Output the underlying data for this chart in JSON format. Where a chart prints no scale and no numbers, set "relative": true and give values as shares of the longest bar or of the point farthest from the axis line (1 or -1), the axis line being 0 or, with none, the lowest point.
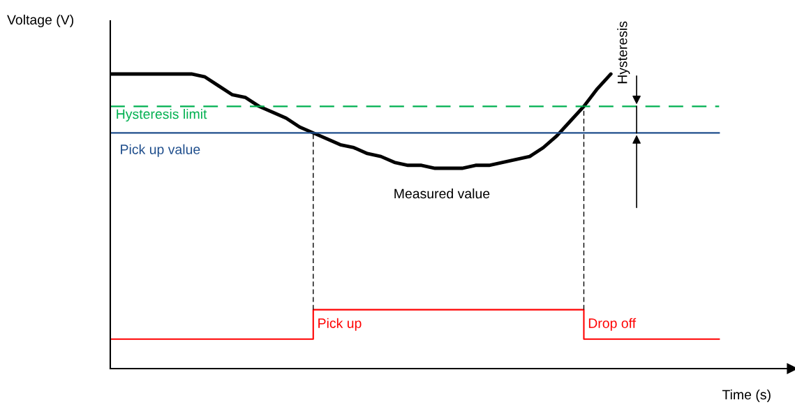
{
  "chart_data": {
    "type": "line",
    "relative": true,
    "xlabel": "Time (s)",
    "ylabel": "Voltage (V)",
    "categories": [
      null,
      null,
      null,
      null,
      null,
      null,
      null,
      null,
      null,
      null,
      null,
      null,
      null,
      null,
      null,
      null,
      null,
      null,
      null,
      null,
      null,
      null,
      null,
      null,
      null,
      null,
      null,
      null,
      null,
      null,
      null,
      null,
      null,
      null,
      null,
      null,
      null,
      null,
      null,
      null,
      null,
      null,
      null,
      null,
      null,
      null,
      null,
      null,
      null,
      null,
      null
    ],
    "series": [
      {
        "name": "Measured value",
        "color": "#000000",
        "values": [
          1.0,
          1.0,
          1.0,
          1.0,
          1.0,
          1.0,
          1.0,
          0.99,
          0.96,
          0.93,
          0.92,
          0.89,
          0.87,
          0.85,
          0.82,
          0.8,
          0.78,
          0.76,
          0.75,
          0.73,
          0.72,
          0.7,
          0.69,
          0.69,
          0.68,
          0.68,
          0.68,
          0.69,
          0.69,
          0.7,
          0.71,
          0.72,
          0.75,
          0.79,
          0.84,
          0.89,
          0.95,
          1.0,
          null,
          null,
          null,
          null,
          null,
          null,
          null,
          null,
          null,
          null,
          null,
          null,
          null
        ]
      },
      {
        "type": "step",
        "color": "#ff0000",
        "values": [
          0.1,
          0.1,
          0.1,
          0.1,
          0.1,
          0.1,
          0.1,
          0.1,
          0.1,
          0.1,
          0.1,
          0.1,
          0.1,
          0.1,
          0.1,
          0.2,
          0.2,
          0.2,
          0.2,
          0.2,
          0.2,
          0.2,
          0.2,
          0.2,
          0.2,
          0.2,
          0.2,
          0.2,
          0.2,
          0.2,
          0.2,
          0.2,
          0.2,
          0.2,
          0.2,
          0.1,
          0.1,
          0.1,
          0.1,
          0.1,
          0.1,
          0.1,
          0.1,
          0.1,
          0.1,
          0.1,
          null,
          null,
          null,
          null,
          null
        ]
      }
    ],
    "ref_lines": [
      {
        "axis": "y",
        "value": 0.89,
        "label": "Hysteresis limit",
        "color": "#00b050",
        "line_style": "dashed"
      },
      {
        "axis": "y",
        "value": 0.8,
        "label": "Pick up value",
        "color": "#1f4e8c",
        "line_style": "solid"
      }
    ],
    "annotations": [
      "Pick up",
      "Drop off",
      "Hysteresis"
    ]
  }
}
